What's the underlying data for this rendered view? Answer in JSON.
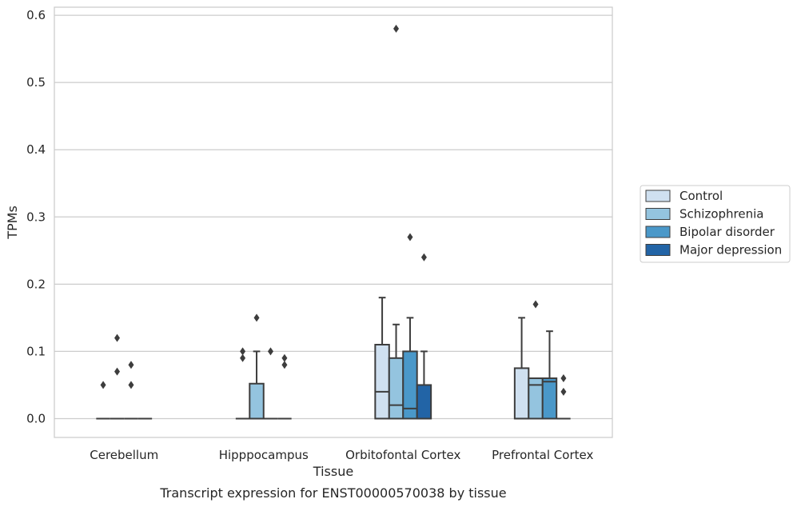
{
  "chart_data": {
    "type": "box",
    "caption": "Transcript expression for ENST00000570038 by tissue",
    "xlabel": "Tissue",
    "ylabel": "TPMs",
    "ylim": [
      -0.028,
      0.612
    ],
    "yticks": [
      0.0,
      0.1,
      0.2,
      0.3,
      0.4,
      0.5,
      0.6
    ],
    "ytick_labels": [
      "0.0",
      "0.1",
      "0.2",
      "0.3",
      "0.4",
      "0.5",
      "0.6"
    ],
    "categories": [
      "Cerebellum",
      "Hipppocampus",
      "Orbitofontal Cortex",
      "Prefrontal Cortex"
    ],
    "grid": "horizontal",
    "legend_position": "right",
    "series": [
      {
        "name": "Control",
        "color": "#cfe0f0",
        "boxes": [
          {
            "q1": 0,
            "median": 0,
            "q3": 0,
            "whisker_low": 0,
            "whisker_high": 0,
            "outliers": [
              0.05
            ]
          },
          {
            "q1": 0,
            "median": 0,
            "q3": 0,
            "whisker_low": 0,
            "whisker_high": 0,
            "outliers": [
              0.09,
              0.1
            ]
          },
          {
            "q1": 0,
            "median": 0.04,
            "q3": 0.11,
            "whisker_low": 0,
            "whisker_high": 0.18,
            "outliers": []
          },
          {
            "q1": 0,
            "median": 0,
            "q3": 0.075,
            "whisker_low": 0,
            "whisker_high": 0.15,
            "outliers": []
          }
        ]
      },
      {
        "name": "Schizophrenia",
        "color": "#94c4df",
        "boxes": [
          {
            "q1": 0,
            "median": 0,
            "q3": 0,
            "whisker_low": 0,
            "whisker_high": 0,
            "outliers": [
              0.12,
              0.07
            ]
          },
          {
            "q1": 0,
            "median": 0,
            "q3": 0.052,
            "whisker_low": 0,
            "whisker_high": 0.1,
            "outliers": [
              0.15
            ]
          },
          {
            "q1": 0,
            "median": 0.02,
            "q3": 0.09,
            "whisker_low": 0,
            "whisker_high": 0.14,
            "outliers": [
              0.58
            ]
          },
          {
            "q1": 0,
            "median": 0.05,
            "q3": 0.06,
            "whisker_low": 0,
            "whisker_high": 0.06,
            "outliers": [
              0.17
            ]
          }
        ]
      },
      {
        "name": "Bipolar disorder",
        "color": "#4a98c9",
        "boxes": [
          {
            "q1": 0,
            "median": 0,
            "q3": 0,
            "whisker_low": 0,
            "whisker_high": 0,
            "outliers": [
              0.08,
              0.05
            ]
          },
          {
            "q1": 0,
            "median": 0,
            "q3": 0,
            "whisker_low": 0,
            "whisker_high": 0,
            "outliers": [
              0.1
            ]
          },
          {
            "q1": 0,
            "median": 0.015,
            "q3": 0.1,
            "whisker_low": 0,
            "whisker_high": 0.15,
            "outliers": [
              0.27
            ]
          },
          {
            "q1": 0,
            "median": 0.055,
            "q3": 0.06,
            "whisker_low": 0,
            "whisker_high": 0.13,
            "outliers": []
          }
        ]
      },
      {
        "name": "Major depression",
        "color": "#2264a6",
        "boxes": [
          {
            "q1": 0,
            "median": 0,
            "q3": 0,
            "whisker_low": 0,
            "whisker_high": 0,
            "outliers": []
          },
          {
            "q1": 0,
            "median": 0,
            "q3": 0,
            "whisker_low": 0,
            "whisker_high": 0,
            "outliers": [
              0.09,
              0.08
            ]
          },
          {
            "q1": 0,
            "median": 0,
            "q3": 0.05,
            "whisker_low": 0,
            "whisker_high": 0.1,
            "outliers": [
              0.24
            ]
          },
          {
            "q1": 0,
            "median": 0,
            "q3": 0,
            "whisker_low": 0,
            "whisker_high": 0,
            "outliers": [
              0.06,
              0.04
            ]
          }
        ]
      }
    ]
  }
}
